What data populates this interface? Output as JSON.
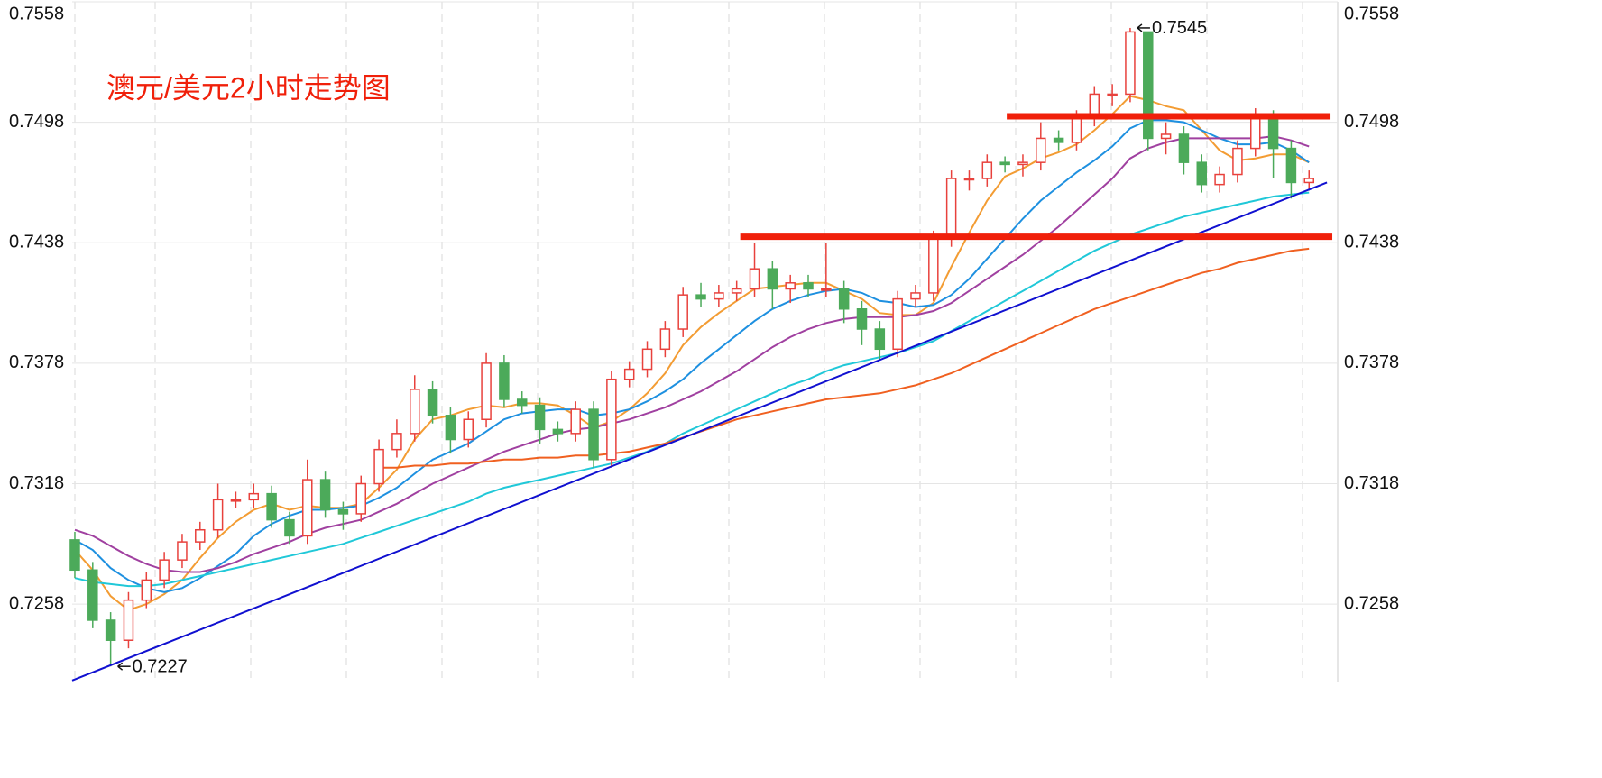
{
  "chart_data": {
    "type": "candlestick",
    "title": "澳元/美元2小时走势图",
    "ylim": [
      0.7219,
      0.7558
    ],
    "yticks": [
      0.7258,
      0.7318,
      0.7378,
      0.7438,
      0.7498,
      0.7558
    ],
    "xlim": [
      -0.15,
      70.45
    ],
    "grid": true,
    "up_color": "#e8413c",
    "down_color": "#4caa5a",
    "open": [
      0.729,
      0.7275,
      0.725,
      0.724,
      0.726,
      0.727,
      0.728,
      0.7289,
      0.7295,
      0.731,
      0.731,
      0.7313,
      0.73,
      0.7292,
      0.732,
      0.7305,
      0.7303,
      0.7318,
      0.7335,
      0.7343,
      0.7365,
      0.7352,
      0.734,
      0.735,
      0.7378,
      0.736,
      0.7357,
      0.7345,
      0.7343,
      0.7355,
      0.733,
      0.737,
      0.7375,
      0.7385,
      0.7395,
      0.7412,
      0.741,
      0.7413,
      0.7415,
      0.7425,
      0.7415,
      0.7418,
      0.7415,
      0.7415,
      0.7405,
      0.7395,
      0.7385,
      0.741,
      0.7413,
      0.744,
      0.747,
      0.747,
      0.7478,
      0.7477,
      0.7478,
      0.749,
      0.7488,
      0.75,
      0.7512,
      0.7512,
      0.7543,
      0.749,
      0.7492,
      0.7478,
      0.7467,
      0.7472,
      0.7485,
      0.75,
      0.7485,
      0.7468
    ],
    "high": [
      0.7294,
      0.7279,
      0.7254,
      0.7264,
      0.7274,
      0.7284,
      0.7293,
      0.7299,
      0.7318,
      0.7314,
      0.7318,
      0.7317,
      0.7304,
      0.733,
      0.7324,
      0.7309,
      0.7322,
      0.734,
      0.735,
      0.7372,
      0.7369,
      0.7356,
      0.7354,
      0.7383,
      0.7382,
      0.7364,
      0.7361,
      0.7349,
      0.7359,
      0.7359,
      0.7374,
      0.7379,
      0.7389,
      0.7399,
      0.7416,
      0.7418,
      0.7417,
      0.7419,
      0.7438,
      0.7429,
      0.7422,
      0.7422,
      0.7438,
      0.7419,
      0.7409,
      0.7399,
      0.7414,
      0.7417,
      0.7444,
      0.7474,
      0.7474,
      0.7482,
      0.7481,
      0.7482,
      0.7498,
      0.7494,
      0.7504,
      0.7516,
      0.7517,
      0.7545,
      0.7543,
      0.7498,
      0.7496,
      0.7482,
      0.7476,
      0.7489,
      0.7505,
      0.7504,
      0.7489,
      0.7474
    ],
    "low": [
      0.7271,
      0.7246,
      0.7227,
      0.7236,
      0.7256,
      0.7266,
      0.7276,
      0.7285,
      0.7291,
      0.7306,
      0.7306,
      0.7296,
      0.7288,
      0.7288,
      0.7301,
      0.7295,
      0.7299,
      0.7314,
      0.7331,
      0.7339,
      0.7348,
      0.7333,
      0.7336,
      0.7346,
      0.7356,
      0.7353,
      0.7338,
      0.7339,
      0.7339,
      0.7326,
      0.7326,
      0.7366,
      0.7371,
      0.7381,
      0.7391,
      0.7406,
      0.7406,
      0.7409,
      0.7411,
      0.7405,
      0.7408,
      0.7411,
      0.7411,
      0.7398,
      0.7387,
      0.738,
      0.7381,
      0.7406,
      0.7409,
      0.7436,
      0.7464,
      0.7466,
      0.7473,
      0.7471,
      0.7474,
      0.7484,
      0.7484,
      0.7496,
      0.7506,
      0.7508,
      0.7484,
      0.7482,
      0.7472,
      0.7463,
      0.7463,
      0.7468,
      0.7481,
      0.747,
      0.746,
      0.7464
    ],
    "close": [
      0.7275,
      0.725,
      0.724,
      0.726,
      0.727,
      0.728,
      0.7289,
      0.7295,
      0.731,
      0.731,
      0.7313,
      0.73,
      0.7292,
      0.732,
      0.7305,
      0.7303,
      0.7318,
      0.7335,
      0.7343,
      0.7365,
      0.7352,
      0.734,
      0.735,
      0.7378,
      0.736,
      0.7357,
      0.7345,
      0.7343,
      0.7355,
      0.733,
      0.737,
      0.7375,
      0.7385,
      0.7395,
      0.7412,
      0.741,
      0.7413,
      0.7415,
      0.7425,
      0.7415,
      0.7418,
      0.7415,
      0.7415,
      0.7405,
      0.7395,
      0.7385,
      0.741,
      0.7413,
      0.744,
      0.747,
      0.747,
      0.7478,
      0.7477,
      0.7478,
      0.749,
      0.7488,
      0.75,
      0.7512,
      0.7512,
      0.7543,
      0.749,
      0.7492,
      0.7478,
      0.7467,
      0.7472,
      0.7485,
      0.75,
      0.7485,
      0.7468,
      0.747
    ],
    "series": [
      {
        "color": "#f39c33",
        "values": [
          0.7285,
          0.7275,
          0.7262,
          0.7255,
          0.7258,
          0.7263,
          0.727,
          0.7281,
          0.7291,
          0.7299,
          0.7305,
          0.7308,
          0.7305,
          0.7307,
          0.7306,
          0.7306,
          0.7308,
          0.7316,
          0.7325,
          0.734,
          0.735,
          0.7352,
          0.7355,
          0.7357,
          0.7356,
          0.7358,
          0.7358,
          0.7357,
          0.7352,
          0.7346,
          0.7349,
          0.7355,
          0.7363,
          0.7373,
          0.7387,
          0.7396,
          0.7403,
          0.7409,
          0.7415,
          0.7416,
          0.7417,
          0.7418,
          0.7418,
          0.7414,
          0.741,
          0.7403,
          0.7402,
          0.7402,
          0.7408,
          0.7426,
          0.7443,
          0.7459,
          0.7471,
          0.7475,
          0.748,
          0.7483,
          0.7487,
          0.7494,
          0.7502,
          0.7511,
          0.7509,
          0.7506,
          0.7504,
          0.7494,
          0.7484,
          0.7479,
          0.748,
          0.7482,
          0.7482,
          0.7478
        ]
      },
      {
        "color": "#1e90e0",
        "values": [
          0.729,
          0.7285,
          0.7276,
          0.727,
          0.7266,
          0.7264,
          0.7266,
          0.7271,
          0.7277,
          0.7283,
          0.7292,
          0.7298,
          0.7302,
          0.7305,
          0.7305,
          0.7306,
          0.7307,
          0.7311,
          0.7316,
          0.7323,
          0.733,
          0.7334,
          0.7338,
          0.7344,
          0.735,
          0.7353,
          0.7354,
          0.7355,
          0.7355,
          0.7352,
          0.7353,
          0.7355,
          0.7359,
          0.7364,
          0.737,
          0.7378,
          0.7385,
          0.7392,
          0.7399,
          0.7405,
          0.7409,
          0.7412,
          0.7414,
          0.7415,
          0.7413,
          0.7409,
          0.7408,
          0.7406,
          0.7407,
          0.7412,
          0.742,
          0.743,
          0.744,
          0.745,
          0.7459,
          0.7466,
          0.7473,
          0.7479,
          0.7486,
          0.7495,
          0.7499,
          0.7499,
          0.7498,
          0.7494,
          0.749,
          0.7487,
          0.7487,
          0.7488,
          0.7484,
          0.7478
        ]
      },
      {
        "color": "#a040a0",
        "values": [
          0.7295,
          0.7292,
          0.7287,
          0.7282,
          0.7278,
          0.7275,
          0.7274,
          0.7274,
          0.7276,
          0.7279,
          0.7283,
          0.7286,
          0.7289,
          0.7293,
          0.7296,
          0.7298,
          0.73,
          0.7304,
          0.7308,
          0.7313,
          0.7318,
          0.7322,
          0.7326,
          0.733,
          0.7334,
          0.7337,
          0.734,
          0.7343,
          0.7345,
          0.7346,
          0.7348,
          0.735,
          0.7353,
          0.7356,
          0.736,
          0.7364,
          0.7369,
          0.7374,
          0.738,
          0.7386,
          0.7391,
          0.7395,
          0.7398,
          0.74,
          0.7401,
          0.7401,
          0.7401,
          0.7402,
          0.7404,
          0.7408,
          0.7414,
          0.742,
          0.7426,
          0.7432,
          0.7439,
          0.7446,
          0.7454,
          0.7462,
          0.747,
          0.748,
          0.7485,
          0.7488,
          0.749,
          0.749,
          0.749,
          0.749,
          0.749,
          0.7491,
          0.7489,
          0.7486
        ]
      },
      {
        "color": "#20c8d8",
        "values": [
          0.7271,
          0.7269,
          0.7268,
          0.7267,
          0.7267,
          0.7268,
          0.727,
          0.7272,
          0.7274,
          0.7276,
          0.7278,
          0.728,
          0.7282,
          0.7284,
          0.7286,
          0.7288,
          0.7291,
          0.7294,
          0.7297,
          0.73,
          0.7303,
          0.7306,
          0.7309,
          0.7313,
          0.7316,
          0.7318,
          0.732,
          0.7322,
          0.7324,
          0.7326,
          0.7328,
          0.7331,
          0.7334,
          0.7338,
          0.7343,
          0.7347,
          0.7351,
          0.7355,
          0.7359,
          0.7363,
          0.7367,
          0.737,
          0.7374,
          0.7377,
          0.7379,
          0.7381,
          0.7383,
          0.7386,
          0.7389,
          0.7394,
          0.7399,
          0.7404,
          0.7409,
          0.7414,
          0.7419,
          0.7424,
          0.7429,
          0.7434,
          0.7438,
          0.7442,
          0.7445,
          0.7448,
          0.7451,
          0.7453,
          0.7455,
          0.7457,
          0.7459,
          0.7461,
          0.7462,
          0.7463
        ]
      },
      {
        "color": "#f06020",
        "values": [
          null,
          null,
          null,
          null,
          null,
          null,
          null,
          null,
          null,
          null,
          null,
          null,
          null,
          null,
          null,
          null,
          null,
          0.7326,
          0.7326,
          0.7327,
          0.7327,
          0.7328,
          0.7328,
          0.7329,
          0.733,
          0.733,
          0.7331,
          0.7331,
          0.7332,
          0.7332,
          0.7333,
          0.7334,
          0.7336,
          0.7338,
          0.7341,
          0.7344,
          0.7347,
          0.735,
          0.7352,
          0.7354,
          0.7356,
          0.7358,
          0.736,
          0.7361,
          0.7362,
          0.7363,
          0.7365,
          0.7367,
          0.737,
          0.7373,
          0.7377,
          0.7381,
          0.7385,
          0.7389,
          0.7393,
          0.7397,
          0.7401,
          0.7405,
          0.7408,
          0.7411,
          0.7414,
          0.7417,
          0.742,
          0.7423,
          0.7425,
          0.7428,
          0.743,
          0.7432,
          0.7434,
          0.7435
        ]
      }
    ],
    "trend_line": {
      "color": "#1010d0",
      "x": [
        -0.15,
        70
      ],
      "y": [
        0.722,
        0.7468
      ]
    },
    "levels": [
      {
        "color": "#f0200a",
        "value": 0.7501,
        "x": [
          52.1,
          70.2
        ]
      },
      {
        "color": "#f0200a",
        "value": 0.7441,
        "x": [
          37.2,
          70.3
        ]
      }
    ],
    "annotations": [
      {
        "text": "0.7545",
        "x": 59,
        "y": 0.7545
      },
      {
        "text": "0.7227",
        "x": 2,
        "y": 0.7227
      }
    ]
  }
}
